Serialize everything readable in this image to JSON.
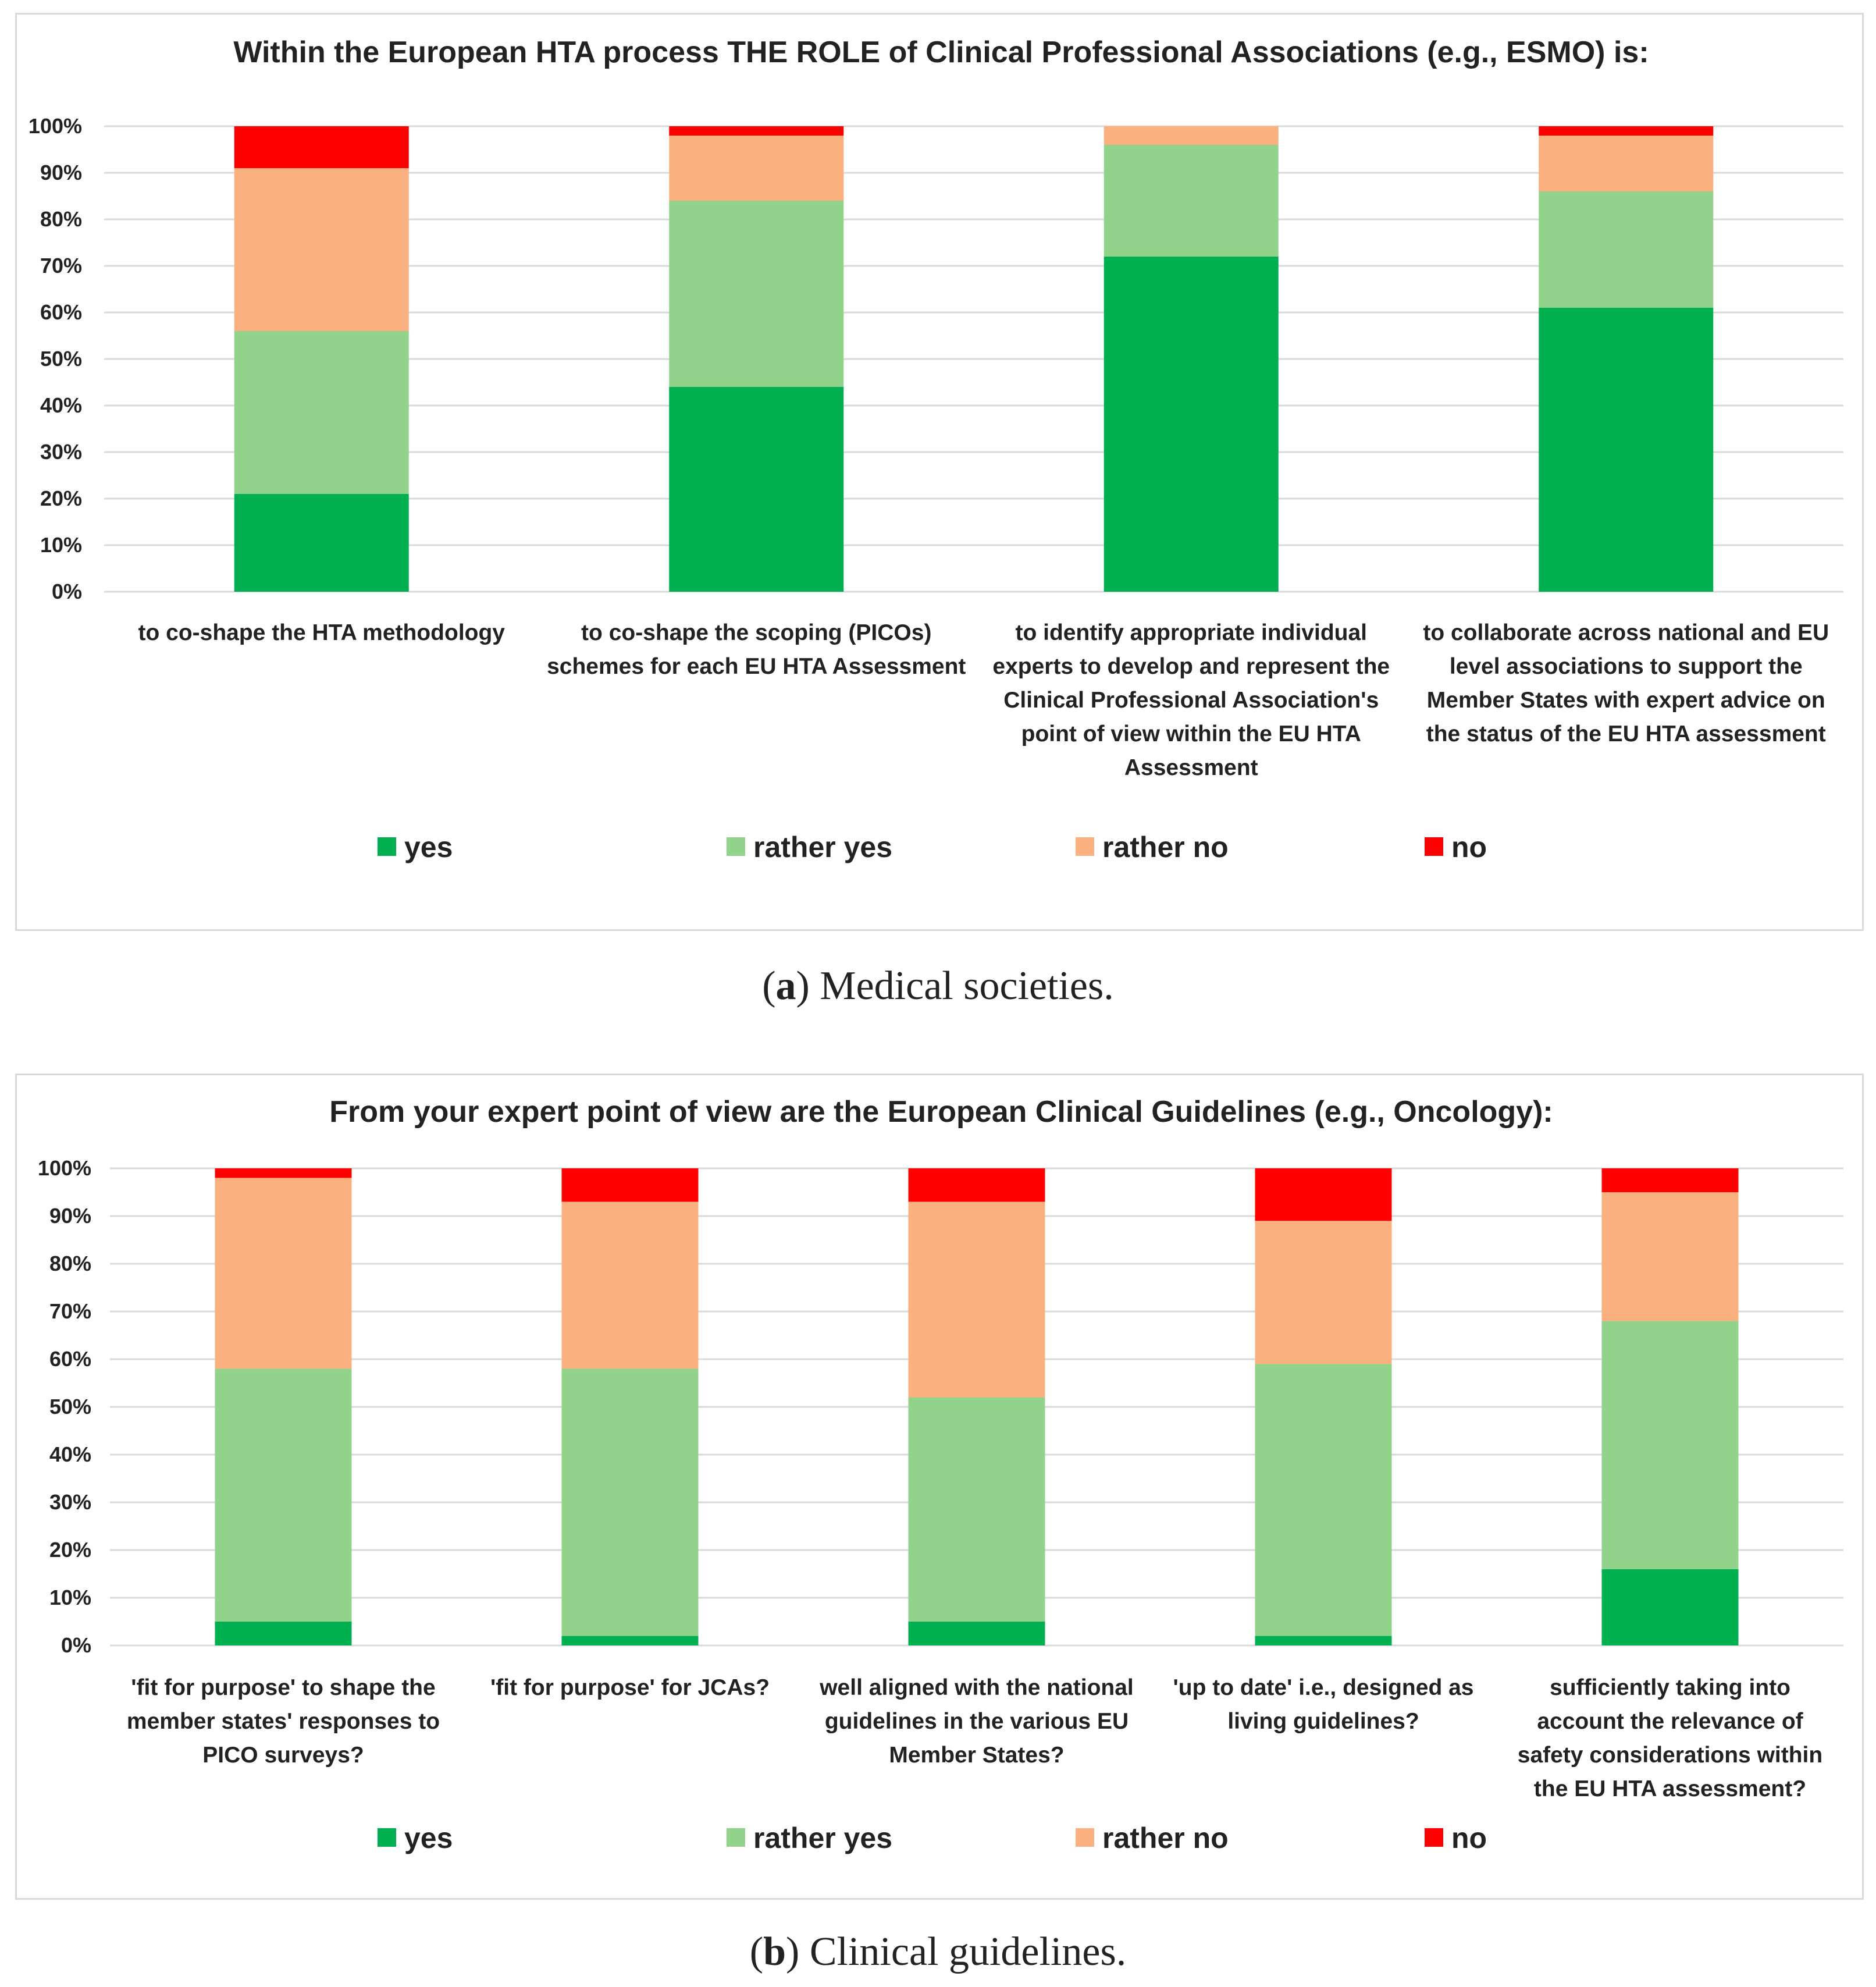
{
  "colors": {
    "yes": "#00b050",
    "rather yes": "#92d38b",
    "rather no": "#fbb07f",
    "no": "#ff0000"
  },
  "captions": {
    "a": {
      "letter": "a",
      "paren_open": "(",
      "paren_close": ")",
      "text": " Medical societies."
    },
    "b": {
      "letter": "b",
      "paren_open": "(",
      "paren_close": ")",
      "text": " Clinical guidelines."
    }
  },
  "chart_data": [
    {
      "type": "bar",
      "stacked": true,
      "title": "Within the European HTA process THE ROLE of Clinical Professional Associations (e.g., ESMO) is:",
      "ylim": [
        0,
        100
      ],
      "yticks": [
        "0%",
        "10%",
        "20%",
        "30%",
        "40%",
        "50%",
        "60%",
        "70%",
        "80%",
        "90%",
        "100%"
      ],
      "grid": true,
      "legend_position": "bottom",
      "categories": [
        [
          "to co-shape the HTA methodology"
        ],
        [
          "to co-shape the scoping (PICOs)",
          "schemes for each EU HTA Assessment"
        ],
        [
          "to identify appropriate individual",
          "experts to develop and represent the",
          "Clinical Professional Association's",
          "point of view within the EU HTA",
          "Assessment"
        ],
        [
          "to collaborate across national and EU",
          "level associations to support the",
          "Member States with expert advice on",
          "the status of the EU HTA assessment"
        ]
      ],
      "series": [
        {
          "name": "yes",
          "values": [
            21,
            44,
            72,
            61
          ]
        },
        {
          "name": "rather yes",
          "values": [
            35,
            40,
            24,
            25
          ]
        },
        {
          "name": "rather no",
          "values": [
            35,
            14,
            4,
            12
          ]
        },
        {
          "name": "no",
          "values": [
            9,
            2,
            0,
            2
          ]
        }
      ]
    },
    {
      "type": "bar",
      "stacked": true,
      "title": "From your expert point of view are the European Clinical Guidelines (e.g., Oncology):",
      "ylim": [
        0,
        100
      ],
      "yticks": [
        "0%",
        "10%",
        "20%",
        "30%",
        "40%",
        "50%",
        "60%",
        "70%",
        "80%",
        "90%",
        "100%"
      ],
      "grid": true,
      "legend_position": "bottom",
      "categories": [
        [
          "'fit for purpose' to shape the",
          "member states' responses to",
          "PICO surveys?"
        ],
        [
          "'fit for purpose' for JCAs?"
        ],
        [
          "well aligned with the national",
          "guidelines in the various EU",
          "Member States?"
        ],
        [
          "'up to date' i.e., designed as",
          "living guidelines?"
        ],
        [
          "sufficiently taking into",
          "account the relevance of",
          "safety considerations within",
          "the EU HTA assessment?"
        ]
      ],
      "series": [
        {
          "name": "yes",
          "values": [
            5,
            2,
            5,
            2,
            16
          ]
        },
        {
          "name": "rather yes",
          "values": [
            53,
            56,
            47,
            57,
            52
          ]
        },
        {
          "name": "rather no",
          "values": [
            40,
            35,
            41,
            30,
            27
          ]
        },
        {
          "name": "no",
          "values": [
            2,
            7,
            7,
            11,
            5
          ]
        }
      ]
    }
  ]
}
